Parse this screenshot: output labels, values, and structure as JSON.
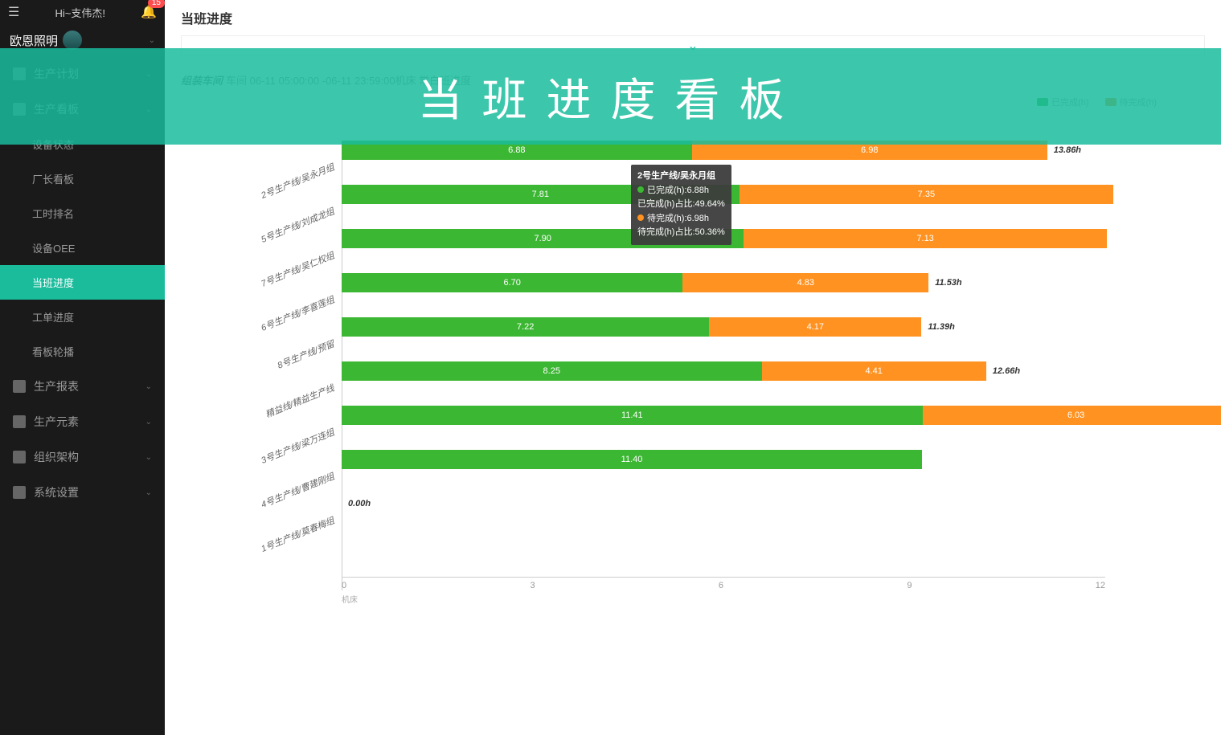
{
  "topbar": {
    "greeting": "Hi~支伟杰!",
    "notification_count": "15"
  },
  "brand": {
    "name": "欧恩照明"
  },
  "nav": [
    {
      "label": "生产计划",
      "level": 0,
      "expandable": true,
      "active": false
    },
    {
      "label": "生产看板",
      "level": 0,
      "expandable": true,
      "active": false
    },
    {
      "label": "设备状态",
      "level": 1,
      "expandable": false,
      "active": false
    },
    {
      "label": "厂长看板",
      "level": 1,
      "expandable": false,
      "active": false
    },
    {
      "label": "工时排名",
      "level": 1,
      "expandable": false,
      "active": false
    },
    {
      "label": "设备OEE",
      "level": 1,
      "expandable": false,
      "active": false
    },
    {
      "label": "当班进度",
      "level": 1,
      "expandable": false,
      "active": true
    },
    {
      "label": "工单进度",
      "level": 1,
      "expandable": false,
      "active": false
    },
    {
      "label": "看板轮播",
      "level": 1,
      "expandable": false,
      "active": false
    },
    {
      "label": "生产报表",
      "level": 0,
      "expandable": true,
      "active": false
    },
    {
      "label": "生产元素",
      "level": 0,
      "expandable": true,
      "active": false
    },
    {
      "label": "组织架构",
      "level": 0,
      "expandable": true,
      "active": false
    },
    {
      "label": "系统设置",
      "level": 0,
      "expandable": true,
      "active": false
    }
  ],
  "page": {
    "title": "当班进度"
  },
  "overlay": {
    "text": "当班进度看板"
  },
  "chart": {
    "header_bold": "组装车间",
    "header_rest": "车间 06-11 05:00:00 -06-11 23:59:00机床 常白班进度",
    "legend_done": "已完成(h)",
    "legend_pending": "待完成(h)",
    "done_color": "#3cb733",
    "pending_color": "#ff9220",
    "x_max": 15,
    "x_ticks": [
      "0",
      "3",
      "6",
      "9",
      "12"
    ],
    "x_axis_label": "机床",
    "rows": [
      {
        "label": "2号生产线/吴永月组",
        "done": 6.88,
        "pending": 6.98,
        "total": "13.86h",
        "done_label": "6.88",
        "pending_label": "6.98"
      },
      {
        "label": "5号生产线/刘成龙组",
        "done": 7.81,
        "pending": 7.35,
        "total": "",
        "done_label": "7.81",
        "pending_label": "7.35"
      },
      {
        "label": "7号生产线/吴仁权组",
        "done": 7.9,
        "pending": 7.13,
        "total": "",
        "done_label": "7.90",
        "pending_label": "7.13"
      },
      {
        "label": "6号生产线/李喜莲组",
        "done": 6.7,
        "pending": 4.83,
        "total": "11.53h",
        "done_label": "6.70",
        "pending_label": "4.83"
      },
      {
        "label": "8号生产线/预留",
        "done": 7.22,
        "pending": 4.17,
        "total": "11.39h",
        "done_label": "7.22",
        "pending_label": "4.17"
      },
      {
        "label": "精益线/精益生产线",
        "done": 8.25,
        "pending": 4.41,
        "total": "12.66h",
        "done_label": "8.25",
        "pending_label": "4.41"
      },
      {
        "label": "3号生产线/梁万连组",
        "done": 11.41,
        "pending": 6.03,
        "total": "",
        "done_label": "11.41",
        "pending_label": "6.03"
      },
      {
        "label": "4号生产线/曹建刚组",
        "done": 11.4,
        "pending": 0,
        "total": "",
        "done_label": "11.40",
        "pending_label": ""
      },
      {
        "label": "1号生产线/莫春梅组",
        "done": 0,
        "pending": 0,
        "total": "0.00h",
        "done_label": "",
        "pending_label": ""
      }
    ],
    "tooltip": {
      "title": "2号生产线/吴永月组",
      "line1": "已完成(h):6.88h",
      "line2": "已完成(h)占比:49.64%",
      "line3": "待完成(h):6.98h",
      "line4": "待完成(h)占比:50.36%"
    }
  }
}
